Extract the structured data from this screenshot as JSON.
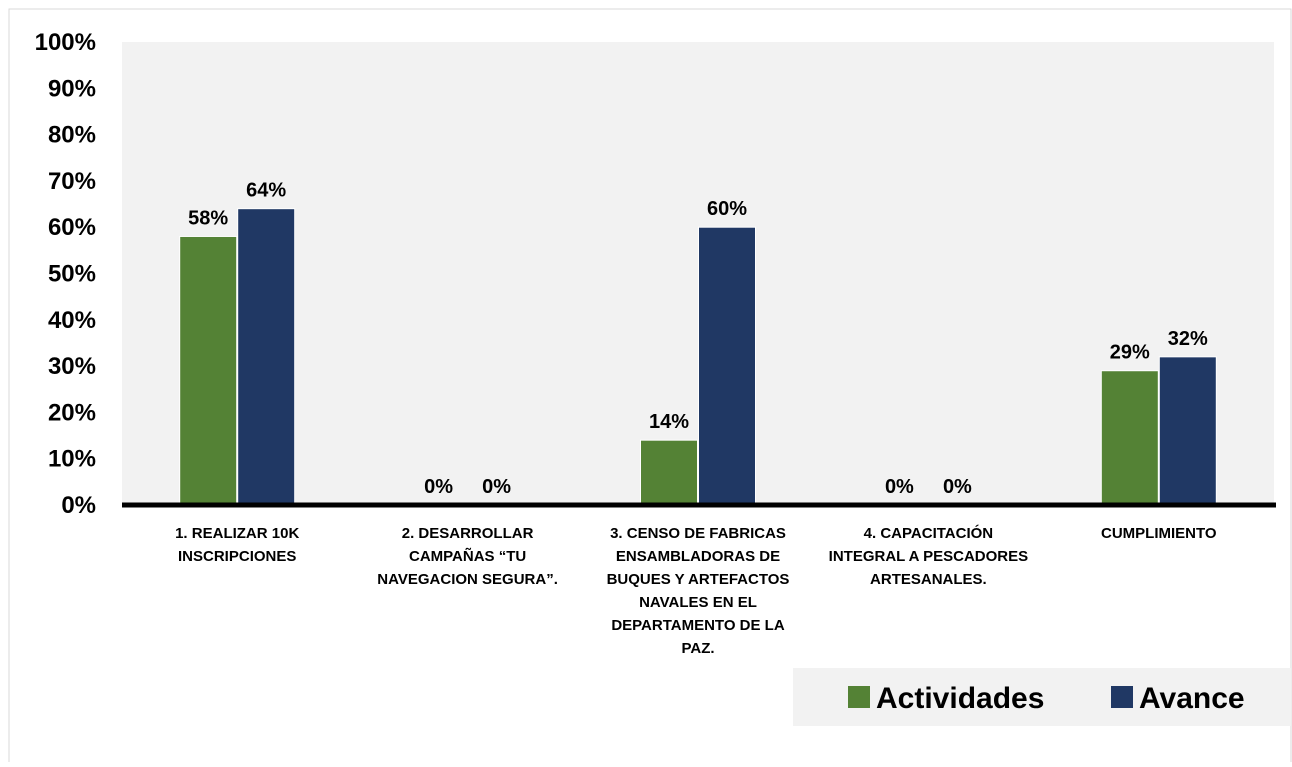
{
  "chart_data": {
    "type": "bar",
    "title": "",
    "xlabel": "",
    "ylabel": "",
    "ylim": [
      0,
      100
    ],
    "y_ticks": [
      "0%",
      "10%",
      "20%",
      "30%",
      "40%",
      "50%",
      "60%",
      "70%",
      "80%",
      "90%",
      "100%"
    ],
    "categories": [
      [
        "1. REALIZAR  10K",
        "INSCRIPCIONES"
      ],
      [
        "2. DESARROLLAR",
        "CAMPAÑAS “TU",
        "NAVEGACION SEGURA”."
      ],
      [
        "3. CENSO DE FABRICAS",
        "ENSAMBLADORAS DE",
        "BUQUES Y ARTEFACTOS",
        "NAVALES EN EL",
        "DEPARTAMENTO DE LA",
        "PAZ."
      ],
      [
        "4. CAPACITACIÓN",
        "INTEGRAL A PESCADORES",
        "ARTESANALES."
      ],
      [
        "CUMPLIMIENTO"
      ]
    ],
    "series": [
      {
        "name": "Actividades",
        "color": "#548235",
        "values": [
          58,
          0,
          14,
          0,
          29
        ],
        "labels": [
          "58%",
          "0%",
          "14%",
          "0%",
          "29%"
        ]
      },
      {
        "name": "Avance",
        "color": "#203864",
        "values": [
          64,
          0,
          60,
          0,
          32
        ],
        "labels": [
          "64%",
          "0%",
          "60%",
          "0%",
          "32%"
        ]
      }
    ],
    "grid": false,
    "legend_position": "bottom-right",
    "plot_background": "#f2f2f2"
  }
}
